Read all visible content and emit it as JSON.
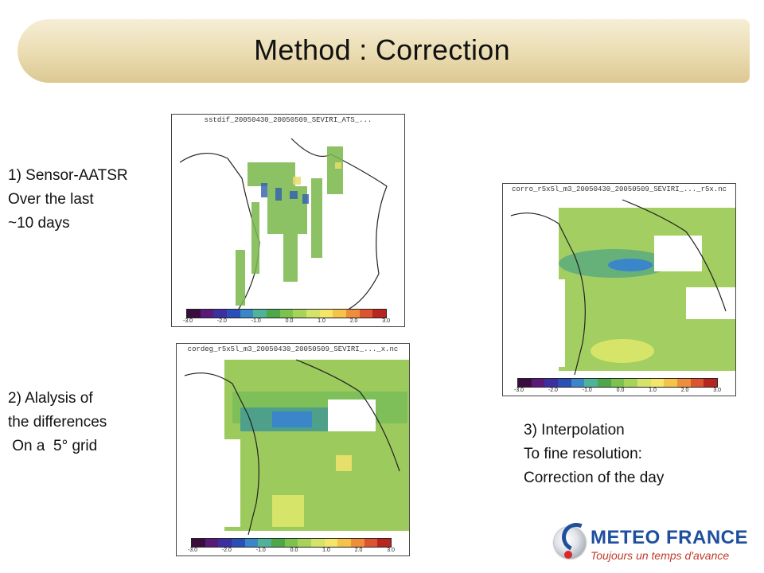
{
  "title": "Method : Correction",
  "captions": {
    "step1": "1) Sensor-AATSR\nOver the last\n~10 days",
    "step2": "2) Alalysis of\nthe differences\n On a  5° grid",
    "step3": "3) Interpolation\nTo fine resolution:\nCorrection of the day"
  },
  "panels": {
    "aatsr": {
      "title": "sstdif_20050430_20050509_SEVIRI_ATS_..."
    },
    "grid5": {
      "title": "cordeg_r5x5l_m3_20050430_20050509_SEVIRI_..._x.nc"
    },
    "interp": {
      "title": "corro_r5x5l_m3_20050430_20050509_SEVIRI_..._r5x.nc"
    }
  },
  "colorbar": {
    "ticks": [
      "-3.0",
      "-2.0",
      "-1.0",
      "0.0",
      "1.0",
      "2.0",
      "3.0"
    ],
    "colors": [
      "#3b0d3f",
      "#5a1a78",
      "#3c2fa0",
      "#2b4fb8",
      "#3a86c8",
      "#4fb39a",
      "#4ea84a",
      "#7cc24f",
      "#a8d35a",
      "#d6e36a",
      "#f3e66a",
      "#f5c24a",
      "#ee8d3a",
      "#dc5530",
      "#b8261f"
    ]
  },
  "logo": {
    "name": "METEO FRANCE",
    "tagline": "Toujours un temps d'avance"
  }
}
